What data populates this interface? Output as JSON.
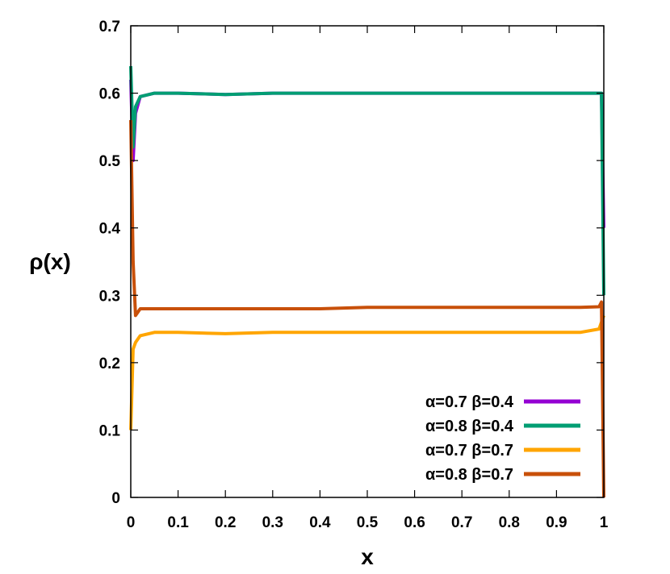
{
  "chart_data": {
    "type": "line",
    "title": "",
    "xlabel": "x",
    "ylabel": "ρ(x)",
    "xlim": [
      0,
      1
    ],
    "ylim": [
      0,
      0.7
    ],
    "xticks": [
      0,
      0.1,
      0.2,
      0.3,
      0.4,
      0.5,
      0.6,
      0.7,
      0.8,
      0.9,
      1
    ],
    "xtick_labels": [
      "0",
      "0.1",
      "0.2",
      "0.3",
      "0.4",
      "0.5",
      "0.6",
      "0.7",
      "0.8",
      "0.9",
      "1"
    ],
    "yticks": [
      0,
      0.1,
      0.2,
      0.3,
      0.4,
      0.5,
      0.6,
      0.7
    ],
    "ytick_labels": [
      "0",
      "0.1",
      "0.2",
      "0.3",
      "0.4",
      "0.5",
      "0.6",
      "0.7"
    ],
    "grid": false,
    "legend_position": "bottom-right",
    "series": [
      {
        "name": "α=0.7 β=0.4",
        "color": "#9400d3",
        "x": [
          0.0,
          0.005,
          0.01,
          0.02,
          0.05,
          0.1,
          0.2,
          0.3,
          0.4,
          0.5,
          0.6,
          0.7,
          0.8,
          0.9,
          0.95,
          0.99,
          0.995,
          1.0
        ],
        "y": [
          0.62,
          0.5,
          0.57,
          0.595,
          0.6,
          0.6,
          0.598,
          0.6,
          0.6,
          0.6,
          0.6,
          0.6,
          0.6,
          0.6,
          0.6,
          0.6,
          0.6,
          0.4
        ]
      },
      {
        "name": "α=0.8 β=0.4",
        "color": "#009e73",
        "x": [
          0.0,
          0.005,
          0.01,
          0.02,
          0.05,
          0.1,
          0.2,
          0.3,
          0.4,
          0.5,
          0.6,
          0.7,
          0.8,
          0.9,
          0.95,
          0.99,
          0.995,
          1.0
        ],
        "y": [
          0.64,
          0.52,
          0.58,
          0.595,
          0.6,
          0.6,
          0.598,
          0.6,
          0.6,
          0.6,
          0.6,
          0.6,
          0.6,
          0.6,
          0.6,
          0.6,
          0.6,
          0.3
        ]
      },
      {
        "name": "α=0.7 β=0.7",
        "color": "#ffa500",
        "x": [
          0.0,
          0.005,
          0.01,
          0.02,
          0.05,
          0.1,
          0.2,
          0.3,
          0.4,
          0.5,
          0.6,
          0.7,
          0.8,
          0.9,
          0.95,
          0.99,
          0.995,
          1.0
        ],
        "y": [
          0.1,
          0.22,
          0.23,
          0.24,
          0.245,
          0.245,
          0.243,
          0.245,
          0.245,
          0.245,
          0.245,
          0.245,
          0.245,
          0.245,
          0.245,
          0.25,
          0.26,
          0.27
        ]
      },
      {
        "name": "α=0.8 β=0.7",
        "color": "#c8500a",
        "x": [
          0.0,
          0.005,
          0.01,
          0.02,
          0.05,
          0.1,
          0.2,
          0.3,
          0.4,
          0.5,
          0.6,
          0.7,
          0.8,
          0.9,
          0.95,
          0.99,
          0.995,
          1.0
        ],
        "y": [
          0.56,
          0.35,
          0.27,
          0.28,
          0.28,
          0.28,
          0.28,
          0.28,
          0.28,
          0.282,
          0.282,
          0.282,
          0.282,
          0.282,
          0.282,
          0.283,
          0.29,
          0.0
        ]
      }
    ]
  }
}
